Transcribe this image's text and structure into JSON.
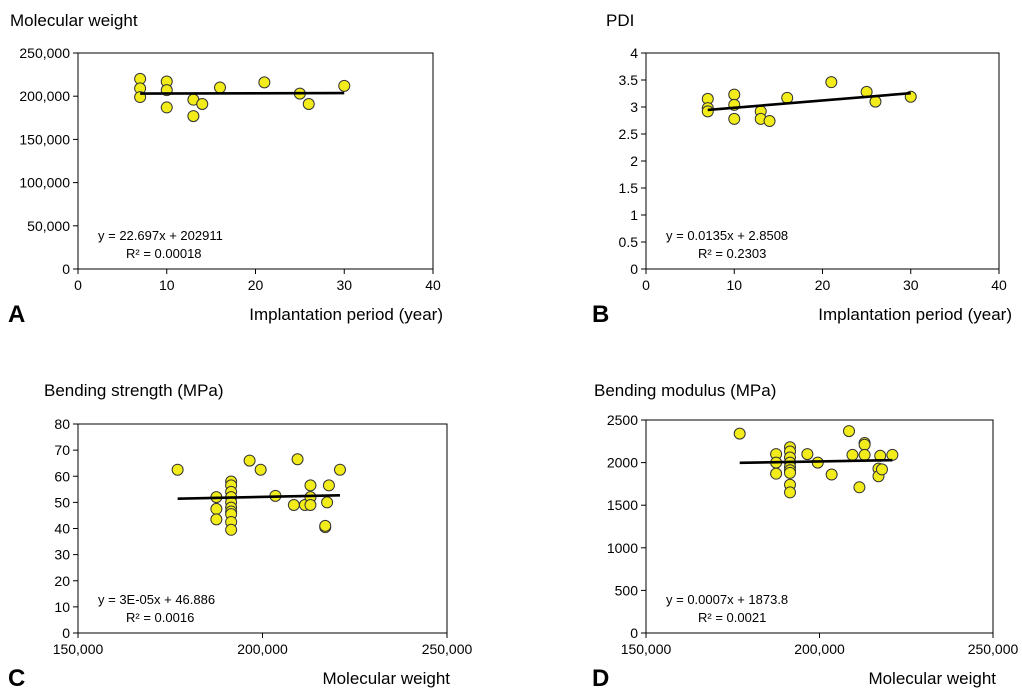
{
  "chart_data": [
    {
      "panel_label": "A",
      "type": "scatter",
      "title": "",
      "ylabel": "Molecular weight",
      "xlabel": "Implantation period (year)",
      "xlim": [
        0,
        40
      ],
      "ylim": [
        0,
        250000
      ],
      "xticks": [
        0,
        10,
        20,
        30,
        40
      ],
      "yticks": [
        0,
        50000,
        100000,
        150000,
        200000,
        250000
      ],
      "xtick_labels": [
        "0",
        "10",
        "20",
        "30",
        "40"
      ],
      "ytick_labels": [
        "0",
        "50,000",
        "100,000",
        "150,000",
        "200,000",
        "250,000"
      ],
      "grid": false,
      "marker_color": "#f2ec1a",
      "points": [
        [
          7,
          220000
        ],
        [
          7,
          209000
        ],
        [
          7,
          199000
        ],
        [
          10,
          217000
        ],
        [
          10,
          207000
        ],
        [
          10,
          187000
        ],
        [
          13,
          196000
        ],
        [
          13,
          177000
        ],
        [
          14,
          191000
        ],
        [
          16,
          210000
        ],
        [
          21,
          216000
        ],
        [
          25,
          203000
        ],
        [
          26,
          191000
        ],
        [
          30,
          212000
        ]
      ],
      "trendline": {
        "x": [
          7,
          30
        ],
        "y": [
          203070,
          203592
        ]
      },
      "equation": "y = 22.697x + 202911",
      "r2": "R² = 0.00018"
    },
    {
      "panel_label": "B",
      "type": "scatter",
      "title": "",
      "ylabel": "PDI",
      "xlabel": "Implantation period (year)",
      "xlim": [
        0,
        40
      ],
      "ylim": [
        0,
        4
      ],
      "xticks": [
        0,
        10,
        20,
        30,
        40
      ],
      "yticks": [
        0,
        0.5,
        1,
        1.5,
        2,
        2.5,
        3,
        3.5,
        4
      ],
      "xtick_labels": [
        "0",
        "10",
        "20",
        "30",
        "40"
      ],
      "ytick_labels": [
        "0",
        "0.5",
        "1",
        "1.5",
        "2",
        "2.5",
        "3",
        "3.5",
        "4"
      ],
      "grid": false,
      "marker_color": "#f2ec1a",
      "points": [
        [
          7,
          3.15
        ],
        [
          7,
          2.98
        ],
        [
          7,
          2.92
        ],
        [
          10,
          3.23
        ],
        [
          10,
          3.04
        ],
        [
          10,
          2.78
        ],
        [
          13,
          2.92
        ],
        [
          13,
          2.78
        ],
        [
          14,
          2.74
        ],
        [
          16,
          3.17
        ],
        [
          21,
          3.46
        ],
        [
          25,
          3.28
        ],
        [
          26,
          3.1
        ],
        [
          30,
          3.19
        ]
      ],
      "trendline": {
        "x": [
          7,
          30
        ],
        "y": [
          2.9453,
          3.2558
        ]
      },
      "equation": "y = 0.0135x + 2.8508",
      "r2": "R² = 0.2303"
    },
    {
      "panel_label": "C",
      "type": "scatter",
      "title": "",
      "ylabel": "Bending strength (MPa)",
      "xlabel": "Molecular weight",
      "xlim": [
        150000,
        250000
      ],
      "ylim": [
        0,
        80
      ],
      "xticks": [
        150000,
        200000,
        250000
      ],
      "yticks": [
        0,
        10,
        20,
        30,
        40,
        50,
        60,
        70,
        80
      ],
      "xtick_labels": [
        "150,000",
        "200,000",
        "250,000"
      ],
      "ytick_labels": [
        "0",
        "10",
        "20",
        "30",
        "40",
        "50",
        "60",
        "70",
        "80"
      ],
      "grid": false,
      "marker_color": "#f2ec1a",
      "points": [
        [
          177000,
          62.5
        ],
        [
          187500,
          52
        ],
        [
          187500,
          47.5
        ],
        [
          187500,
          43.5
        ],
        [
          191500,
          58
        ],
        [
          191500,
          56.5
        ],
        [
          191500,
          54
        ],
        [
          191500,
          52
        ],
        [
          191500,
          50
        ],
        [
          191500,
          48
        ],
        [
          191500,
          46.5
        ],
        [
          191500,
          45.5
        ],
        [
          191500,
          42.5
        ],
        [
          191500,
          39.5
        ],
        [
          196500,
          66
        ],
        [
          199500,
          62.5
        ],
        [
          203500,
          52.5
        ],
        [
          208500,
          49
        ],
        [
          209500,
          66.5
        ],
        [
          211500,
          49
        ],
        [
          213000,
          56.5
        ],
        [
          213000,
          52
        ],
        [
          213000,
          49
        ],
        [
          217500,
          50
        ],
        [
          217000,
          40.5
        ],
        [
          217000,
          41
        ],
        [
          218000,
          56.5
        ],
        [
          221000,
          62.5
        ]
      ],
      "trendline": {
        "x": [
          177000,
          221000
        ],
        "y": [
          51.396,
          52.716
        ]
      },
      "equation": "y = 3E-05x + 46.886",
      "r2": "R² = 0.0016"
    },
    {
      "panel_label": "D",
      "type": "scatter",
      "title": "",
      "ylabel": "Bending modulus (MPa)",
      "xlabel": "Molecular weight",
      "xlim": [
        150000,
        250000
      ],
      "ylim": [
        0,
        2500
      ],
      "xticks": [
        150000,
        200000,
        250000
      ],
      "yticks": [
        0,
        500,
        1000,
        1500,
        2000,
        2500
      ],
      "xtick_labels": [
        "150,000",
        "200,000",
        "250,000"
      ],
      "ytick_labels": [
        "0",
        "500",
        "1000",
        "1500",
        "2000",
        "2500"
      ],
      "grid": false,
      "marker_color": "#f2ec1a",
      "points": [
        [
          177000,
          2340
        ],
        [
          187500,
          2100
        ],
        [
          187500,
          2000
        ],
        [
          187500,
          1870
        ],
        [
          191500,
          2180
        ],
        [
          191500,
          2130
        ],
        [
          191500,
          2060
        ],
        [
          191500,
          2000
        ],
        [
          191500,
          1950
        ],
        [
          191500,
          1910
        ],
        [
          191500,
          1880
        ],
        [
          191500,
          1740
        ],
        [
          191500,
          1650
        ],
        [
          196500,
          2100
        ],
        [
          199500,
          2000
        ],
        [
          203500,
          1860
        ],
        [
          208500,
          2370
        ],
        [
          209500,
          2090
        ],
        [
          211500,
          1710
        ],
        [
          213000,
          2230
        ],
        [
          213000,
          2210
        ],
        [
          213000,
          2090
        ],
        [
          217500,
          2080
        ],
        [
          217000,
          1930
        ],
        [
          217000,
          1840
        ],
        [
          218000,
          1920
        ],
        [
          221000,
          2090
        ]
      ],
      "trendline": {
        "x": [
          177000,
          221000
        ],
        "y": [
          1997.7,
          2028.5
        ]
      },
      "equation": "y = 0.0007x + 1873.8",
      "r2": "R² = 0.0021"
    }
  ]
}
